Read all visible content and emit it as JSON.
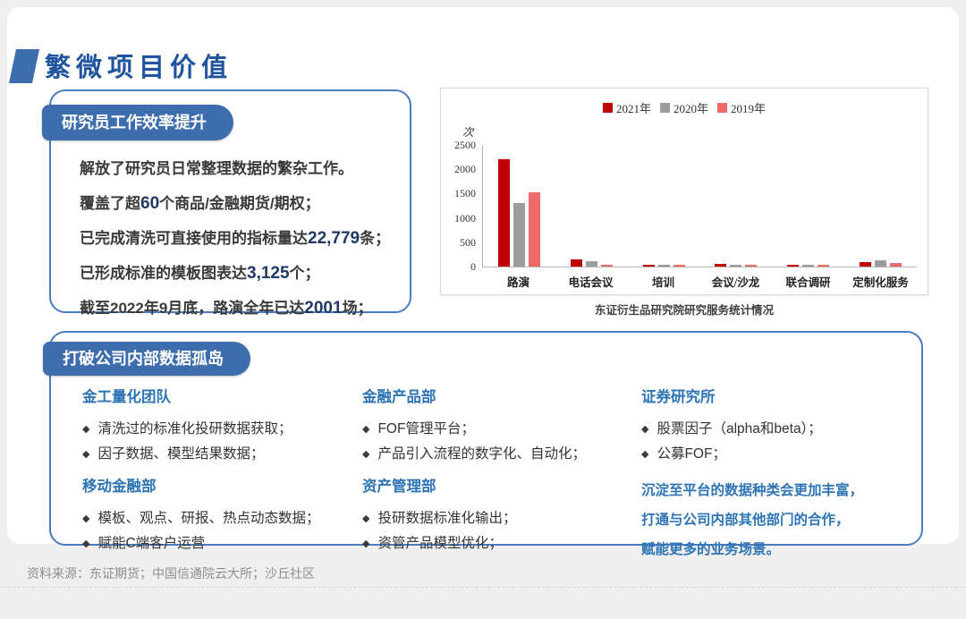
{
  "slide": {
    "title": "繁微项目价值",
    "footer": "资料来源：东证期货；中国信通院云大所；沙丘社区"
  },
  "efficiency_box": {
    "badge": "研究员工作效率提升",
    "lines": [
      {
        "pre": "解放了研究员日常整理数据的繁杂工作。",
        "num": "",
        "post": ""
      },
      {
        "pre": "覆盖了超",
        "num": "60",
        "post": "个商品/金融期货/期权；"
      },
      {
        "pre": "已完成清洗可直接使用的指标量达",
        "num": "22,779",
        "post": "条；"
      },
      {
        "pre": "已形成标准的模板图表达",
        "num": "3,125",
        "post": "个；"
      },
      {
        "pre": "截至2022年9月底，路演全年已达",
        "num": "2001",
        "post": "场；"
      }
    ]
  },
  "chart_data": {
    "type": "bar",
    "title": "东证衍生品研究院研究服务统计情况",
    "unit_label": "次",
    "categories": [
      "路演",
      "电话会议",
      "培训",
      "会议/沙龙",
      "联合调研",
      "定制化服务"
    ],
    "series": [
      {
        "name": "2021年",
        "color": "#c00000",
        "values": [
          2200,
          150,
          20,
          50,
          15,
          95
        ]
      },
      {
        "name": "2020年",
        "color": "#9c9c9c",
        "values": [
          1300,
          110,
          15,
          25,
          10,
          135
        ]
      },
      {
        "name": "2019年",
        "color": "#ee6b6b",
        "values": [
          1520,
          45,
          30,
          35,
          10,
          75
        ]
      }
    ],
    "ylim": [
      0,
      2500
    ],
    "yticks": [
      0,
      500,
      1000,
      1500,
      2000,
      2500
    ],
    "legend_position": "top",
    "grid": false
  },
  "island_box": {
    "badge": "打破公司内部数据孤岛",
    "bullet": "◆",
    "columns": [
      {
        "sections": [
          {
            "heading": "金工量化团队",
            "items": [
              "清洗过的标准化投研数据获取；",
              "因子数据、模型结果数据；"
            ]
          },
          {
            "heading": "移动金融部",
            "items": [
              "模板、观点、研报、热点动态数据；",
              "赋能C端客户运营"
            ]
          }
        ]
      },
      {
        "sections": [
          {
            "heading": "金融产品部",
            "items": [
              "FOF管理平台；",
              "产品引入流程的数字化、自动化；"
            ]
          },
          {
            "heading": "资产管理部",
            "items": [
              "投研数据标准化输出；",
              "资管产品模型优化；"
            ]
          }
        ]
      },
      {
        "sections": [
          {
            "heading": "证券研究所",
            "items": [
              "股票因子（alpha和beta）；",
              "公募FOF；"
            ]
          }
        ],
        "note_lines": [
          "沉淀至平台的数据种类会更加丰富，",
          "打通与公司内部其他部门的合作，",
          "赋能更多的业务场景。"
        ]
      }
    ]
  },
  "colors": {
    "accent_blue": "#3d6dac",
    "title_blue": "#21549f",
    "box_border_blue": "#4a7cc0",
    "heading_blue": "#2e74b5",
    "number_navy": "#203864",
    "background_gray": "#efefef",
    "footer_gray": "#8f8f8f"
  }
}
